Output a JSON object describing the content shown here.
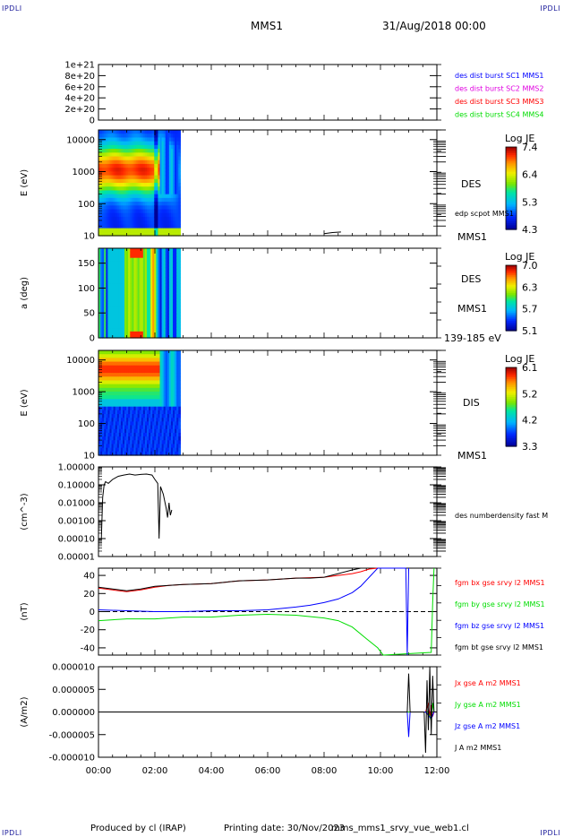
{
  "header": {
    "corner_label": "IPDLI",
    "title": "MMS1",
    "date": "31/Aug/2018 00:00"
  },
  "footer": {
    "produced_by": "Produced by cl (IRAP)",
    "printing_date": "Printing date: 30/Nov/2023",
    "filename": "mms_mms1_srvy_vue_web1.cl"
  },
  "colors": {
    "blue": "#0000ff",
    "magenta": "#e000e0",
    "red": "#ff0000",
    "green": "#00dd00",
    "black": "#000000"
  },
  "chart_data": [
    {
      "type": "line",
      "ylim": [
        0,
        1e+21
      ],
      "yticks": [
        "1e+21",
        "8e+20",
        "6e+20",
        "4e+20",
        "2e+20",
        "0"
      ],
      "reference_line": 0,
      "legend": [
        {
          "name": "des dist burst SC1 MMS1",
          "color": "#0000ff"
        },
        {
          "name": "des dist burst SC2 MMS2",
          "color": "#e000e0"
        },
        {
          "name": "des dist burst SC3 MMS3",
          "color": "#ff0000"
        },
        {
          "name": "des dist burst SC4 MMS4",
          "color": "#00dd00"
        }
      ]
    },
    {
      "type": "heatmap",
      "ylabel": "E (eV)",
      "yscale": "log",
      "ylim": [
        10,
        20000
      ],
      "yticks": [
        "10000",
        "1000",
        "100",
        "10"
      ],
      "data_range_hours": [
        0,
        2.9
      ],
      "colorbar": {
        "title": "Log JE",
        "ticks": [
          "7.4",
          "6.4",
          "5.3",
          "4.3"
        ]
      },
      "right_labels": [
        "DES",
        "MMS1"
      ],
      "overlay": "edp scpot MMS1",
      "overlay_points": [
        [
          8.0,
          11.5
        ],
        [
          8.3,
          12.5
        ],
        [
          8.6,
          13
        ]
      ]
    },
    {
      "type": "heatmap",
      "ylabel": "a (deg)",
      "ylim": [
        0,
        180
      ],
      "yticks": [
        "150",
        "100",
        "50",
        "0"
      ],
      "data_range_hours": [
        0,
        2.9
      ],
      "colorbar": {
        "title": "Log JE",
        "ticks": [
          "7.0",
          "6.3",
          "5.7",
          "5.1"
        ]
      },
      "right_labels": [
        "DES",
        "MMS1"
      ],
      "energy_band": "139-185 eV"
    },
    {
      "type": "heatmap",
      "ylabel": "E (eV)",
      "yscale": "log",
      "ylim": [
        10,
        20000
      ],
      "yticks": [
        "10000",
        "1000",
        "100",
        "10"
      ],
      "data_range_hours": [
        0,
        2.9
      ],
      "colorbar": {
        "title": "Log JE",
        "ticks": [
          "6.1",
          "5.2",
          "4.2",
          "3.3"
        ]
      },
      "right_labels": [
        "DIS",
        "MMS1"
      ]
    },
    {
      "type": "line",
      "ylabel": "(cm^-3)",
      "yscale": "log",
      "ylim": [
        1e-05,
        1.0
      ],
      "yticks": [
        "1.00000",
        "0.10000",
        "0.01000",
        "0.00100",
        "0.00010",
        "0.00001"
      ],
      "series": [
        {
          "name": "des numberdensity fast M",
          "color": "#000000",
          "x": [
            0.1,
            0.15,
            0.2,
            0.25,
            0.35,
            0.5,
            0.7,
            0.9,
            1.1,
            1.3,
            1.5,
            1.7,
            1.9,
            2.0,
            2.1,
            2.15,
            2.2,
            2.3,
            2.4,
            2.45,
            2.5,
            2.55,
            2.6
          ],
          "y": [
            0.0001,
            0.02,
            0.1,
            0.15,
            0.12,
            0.2,
            0.3,
            0.35,
            0.4,
            0.35,
            0.38,
            0.4,
            0.35,
            0.2,
            0.12,
            0.0001,
            0.08,
            0.03,
            0.005,
            0.0015,
            0.01,
            0.002,
            0.004
          ]
        }
      ]
    },
    {
      "type": "line",
      "ylabel": "(nT)",
      "ylim": [
        -48,
        48
      ],
      "yticks": [
        "40",
        "20",
        "0",
        "-20",
        "-40"
      ],
      "reference_line": 0,
      "series": [
        {
          "name": "fgm bx gse srvy l2 MMS1",
          "color": "#ff0000",
          "x": [
            0,
            0.5,
            1,
            1.5,
            2,
            2.5,
            3,
            4,
            5,
            6,
            7,
            8,
            8.5,
            9,
            9.3,
            9.6,
            9.9
          ],
          "y": [
            26,
            24,
            22,
            24,
            27,
            29,
            30,
            31,
            34,
            35,
            37,
            38,
            40,
            42,
            44,
            47,
            50
          ]
        },
        {
          "name": "fgm by gse srvy l2 MMS1",
          "color": "#00dd00",
          "x": [
            0,
            1,
            2,
            3,
            4,
            5,
            6,
            7,
            8,
            8.5,
            9,
            9.5,
            9.9,
            10.1,
            11.8,
            11.85,
            11.9
          ],
          "y": [
            -10,
            -8,
            -8,
            -6,
            -6,
            -4,
            -3,
            -4,
            -7,
            -10,
            -17,
            -30,
            -40,
            -50,
            -45,
            10,
            50
          ]
        },
        {
          "name": "fgm bz gse srvy l2 MMS1",
          "color": "#0000ff",
          "x": [
            0,
            1,
            2,
            3,
            4,
            5,
            6,
            7,
            7.5,
            8,
            8.5,
            9,
            9.3,
            9.6,
            9.9,
            10.9,
            10.95,
            11
          ],
          "y": [
            2,
            1,
            0,
            0,
            1,
            1,
            2,
            5,
            7,
            10,
            14,
            21,
            28,
            38,
            50,
            50,
            -50,
            50
          ]
        },
        {
          "name": "fgm bt gse srvy l2 MMS1",
          "color": "#000000",
          "x": [
            0,
            0.5,
            1,
            1.5,
            2,
            2.5,
            3,
            4,
            5,
            6,
            7,
            7.5,
            8,
            8.5,
            9,
            9.3
          ],
          "y": [
            27,
            25,
            23,
            25,
            28,
            29,
            30,
            31,
            34,
            35,
            37,
            37,
            38,
            42,
            46,
            50
          ]
        }
      ]
    },
    {
      "type": "line",
      "ylabel": "(A/m2)",
      "ylim": [
        -1e-05,
        1e-05
      ],
      "yticks": [
        "0.000010",
        "0.000005",
        "0.000000",
        "-0.000005",
        "-0.000010"
      ],
      "xticks": [
        "00:00",
        "02:00",
        "04:00",
        "06:00",
        "08:00",
        "10:00",
        "12:00"
      ],
      "xlim_hours": [
        0,
        12
      ],
      "series": [
        {
          "name": "Jx gse A m2 MMS1",
          "color": "#ff0000",
          "x": [
            0,
            11.6,
            11.7,
            11.75,
            11.8,
            11.85,
            11.9
          ],
          "y": [
            0,
            0,
            2e-06,
            -1e-06,
            1.5e-06,
            -1e-06,
            0
          ]
        },
        {
          "name": "Jy gse A m2 MMS1",
          "color": "#00dd00",
          "x": [
            0,
            11.7,
            11.8,
            11.85,
            11.9
          ],
          "y": [
            0,
            0,
            -2e-06,
            2e-06,
            0
          ]
        },
        {
          "name": "Jz gse A m2 MMS1",
          "color": "#0000ff",
          "x": [
            0,
            10.95,
            11.0,
            11.05,
            11.6,
            11.8,
            11.9
          ],
          "y": [
            0,
            0,
            -5.5e-06,
            0,
            0,
            -1.5e-06,
            0
          ]
        },
        {
          "name": "J A m2 MMS1",
          "color": "#000000",
          "x": [
            0,
            10.95,
            11.0,
            11.05,
            11.55,
            11.6,
            11.65,
            11.7,
            11.75,
            11.8,
            11.85,
            11.9
          ],
          "y": [
            0,
            0,
            8.5e-06,
            0,
            0,
            -9e-06,
            7e-06,
            -4e-06,
            1.1e-05,
            -5e-06,
            8e-06,
            0
          ]
        }
      ]
    }
  ]
}
